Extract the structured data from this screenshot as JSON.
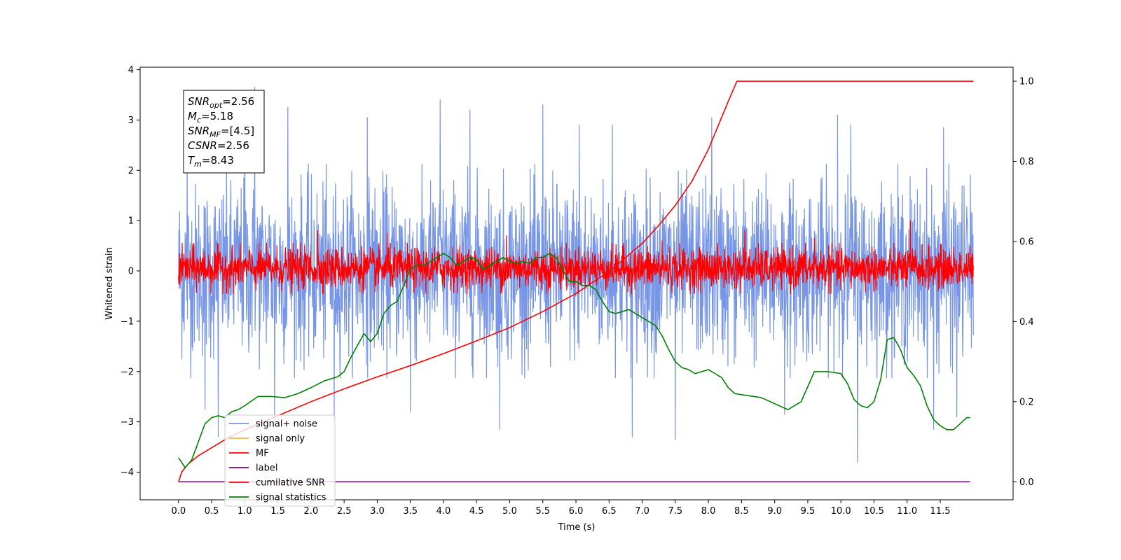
{
  "chart_data": {
    "type": "line",
    "xlabel": "Time (s)",
    "ylabel": "Whitened strain",
    "xlim": [
      -0.58,
      12.6
    ],
    "ylim": [
      -4.55,
      4.05
    ],
    "y2lim": [
      -0.045,
      1.035
    ],
    "xticks": [
      0.0,
      0.5,
      1.0,
      1.5,
      2.0,
      2.5,
      3.0,
      3.5,
      4.0,
      4.5,
      5.0,
      5.5,
      6.0,
      6.5,
      7.0,
      7.5,
      8.0,
      8.5,
      9.0,
      9.5,
      10.0,
      10.5,
      11.0,
      11.5
    ],
    "xtick_labels": [
      "0.0",
      "0.5",
      "1.0",
      "1.5",
      "2.0",
      "2.5",
      "3.0",
      "3.5",
      "4.0",
      "4.5",
      "5.0",
      "5.5",
      "6.0",
      "6.5",
      "7.0",
      "7.5",
      "8.0",
      "8.5",
      "9.0",
      "9.5",
      "10.0",
      "10.5",
      "11.0",
      "11.5"
    ],
    "yticks": [
      -4,
      -3,
      -2,
      -1,
      0,
      1,
      2,
      3,
      4
    ],
    "ytick_labels": [
      "−4",
      "−3",
      "−2",
      "−1",
      "0",
      "1",
      "2",
      "3",
      "4"
    ],
    "y2ticks": [
      0.0,
      0.2,
      0.4,
      0.6,
      0.8,
      1.0
    ],
    "y2tick_labels": [
      "0.0",
      "0.2",
      "0.4",
      "0.6",
      "0.8",
      "1.0"
    ],
    "grid": false,
    "legend_position": "lower-left",
    "annotation": {
      "lines": [
        {
          "base": "SNR",
          "sub": "opt",
          "rest": "=2.56"
        },
        {
          "base": "M",
          "sub": "c",
          "rest": "=5.18"
        },
        {
          "base": "SNR",
          "sub": "MF",
          "rest": "=[4.5]"
        },
        {
          "base": "CSNR",
          "sub": "",
          "rest": "=2.56"
        },
        {
          "base": "T",
          "sub": "m",
          "rest": "=8.43"
        }
      ]
    },
    "series": [
      {
        "name": "signal+ noise",
        "axis": "left",
        "color": "#7896e8",
        "style": "noise",
        "t_range": [
          0.0,
          12.0
        ],
        "typical_range": [
          -1.7,
          1.7
        ],
        "spikes": [
          {
            "x": 0.13,
            "y": 2.7
          },
          {
            "x": 1.0,
            "y": 2.75
          },
          {
            "x": 1.15,
            "y": 3.65
          },
          {
            "x": 1.65,
            "y": 3.25
          },
          {
            "x": 2.85,
            "y": 3.05
          },
          {
            "x": 3.95,
            "y": 3.4
          },
          {
            "x": 4.4,
            "y": 3.2
          },
          {
            "x": 5.5,
            "y": 3.3
          },
          {
            "x": 6.05,
            "y": 2.9
          },
          {
            "x": 6.55,
            "y": 2.9
          },
          {
            "x": 8.05,
            "y": 3.05
          },
          {
            "x": 9.95,
            "y": 3.1
          },
          {
            "x": 10.15,
            "y": 2.9
          },
          {
            "x": 11.55,
            "y": 2.85
          },
          {
            "x": 0.4,
            "y": -2.75
          },
          {
            "x": 0.6,
            "y": -3.3
          },
          {
            "x": 1.45,
            "y": -3.05
          },
          {
            "x": 2.35,
            "y": -2.95
          },
          {
            "x": 3.5,
            "y": -2.8
          },
          {
            "x": 4.85,
            "y": -3.15
          },
          {
            "x": 6.85,
            "y": -3.3
          },
          {
            "x": 7.5,
            "y": -3.35
          },
          {
            "x": 10.25,
            "y": -3.8
          },
          {
            "x": 11.4,
            "y": -3.15
          },
          {
            "x": 11.75,
            "y": -2.9
          },
          {
            "x": 9.15,
            "y": -2.85
          }
        ]
      },
      {
        "name": "signal only",
        "axis": "left",
        "color": "#ffb347",
        "style": "hidden"
      },
      {
        "name": "MF",
        "axis": "left",
        "color": "#ff0000",
        "style": "noise",
        "t_range": [
          0.0,
          12.0
        ],
        "typical_range": [
          -0.35,
          0.45
        ],
        "spikes": [
          {
            "x": 2.1,
            "y": 0.8
          },
          {
            "x": 3.15,
            "y": 0.75
          },
          {
            "x": 4.95,
            "y": 0.7
          },
          {
            "x": 8.55,
            "y": 0.8
          },
          {
            "x": 11.05,
            "y": 1.0
          },
          {
            "x": 9.6,
            "y": 0.65
          },
          {
            "x": 7.3,
            "y": 0.6
          }
        ]
      },
      {
        "name": "cumilative SNR",
        "axis": "right",
        "color": "#ff0000",
        "style": "curve",
        "x": [
          0.0,
          0.05,
          0.15,
          0.3,
          0.5,
          0.75,
          1.0,
          1.5,
          2.0,
          2.5,
          3.0,
          3.5,
          4.0,
          4.5,
          5.0,
          5.5,
          6.0,
          6.5,
          7.0,
          7.25,
          7.5,
          7.75,
          8.0,
          8.1,
          8.2,
          8.3,
          8.43,
          8.5,
          9.0,
          10.0,
          11.0,
          12.0
        ],
        "y": [
          0.0,
          0.025,
          0.045,
          0.065,
          0.085,
          0.11,
          0.13,
          0.165,
          0.2,
          0.232,
          0.262,
          0.29,
          0.32,
          0.352,
          0.385,
          0.425,
          0.47,
          0.525,
          0.595,
          0.64,
          0.69,
          0.75,
          0.83,
          0.87,
          0.91,
          0.95,
          1.0,
          1.0,
          1.0,
          1.0,
          1.0,
          1.0
        ]
      },
      {
        "name": "label",
        "axis": "right",
        "color": "#800080",
        "style": "curve",
        "x": [
          0.0,
          11.95
        ],
        "y": [
          0.0,
          0.0
        ]
      },
      {
        "name": "signal statistics",
        "axis": "right",
        "color": "#008000",
        "style": "curve",
        "x": [
          0.0,
          0.1,
          0.2,
          0.3,
          0.4,
          0.5,
          0.6,
          0.7,
          0.8,
          0.9,
          1.0,
          1.2,
          1.4,
          1.6,
          1.8,
          2.0,
          2.2,
          2.4,
          2.5,
          2.6,
          2.7,
          2.8,
          2.9,
          3.0,
          3.1,
          3.2,
          3.3,
          3.4,
          3.5,
          3.6,
          3.7,
          3.8,
          3.9,
          4.0,
          4.1,
          4.2,
          4.3,
          4.4,
          4.5,
          4.6,
          4.7,
          4.8,
          4.9,
          5.0,
          5.1,
          5.2,
          5.3,
          5.4,
          5.5,
          5.6,
          5.7,
          5.8,
          5.9,
          6.0,
          6.1,
          6.2,
          6.3,
          6.4,
          6.5,
          6.6,
          6.7,
          6.8,
          6.9,
          7.0,
          7.1,
          7.2,
          7.3,
          7.4,
          7.5,
          7.6,
          7.7,
          7.8,
          7.9,
          8.0,
          8.1,
          8.2,
          8.3,
          8.4,
          8.6,
          8.8,
          9.0,
          9.2,
          9.4,
          9.6,
          9.8,
          10.0,
          10.1,
          10.2,
          10.3,
          10.4,
          10.5,
          10.6,
          10.7,
          10.8,
          10.9,
          11.0,
          11.1,
          11.2,
          11.3,
          11.4,
          11.5,
          11.6,
          11.7,
          11.8,
          11.9,
          11.95
        ],
        "y": [
          0.06,
          0.035,
          0.055,
          0.1,
          0.145,
          0.16,
          0.165,
          0.16,
          0.175,
          0.18,
          0.19,
          0.213,
          0.213,
          0.21,
          0.22,
          0.235,
          0.252,
          0.262,
          0.275,
          0.31,
          0.34,
          0.37,
          0.35,
          0.37,
          0.42,
          0.44,
          0.45,
          0.49,
          0.53,
          0.54,
          0.54,
          0.55,
          0.56,
          0.57,
          0.56,
          0.54,
          0.55,
          0.56,
          0.555,
          0.53,
          0.54,
          0.55,
          0.56,
          0.55,
          0.545,
          0.55,
          0.545,
          0.56,
          0.56,
          0.57,
          0.56,
          0.53,
          0.5,
          0.5,
          0.49,
          0.49,
          0.48,
          0.45,
          0.425,
          0.42,
          0.425,
          0.43,
          0.42,
          0.41,
          0.4,
          0.39,
          0.365,
          0.33,
          0.3,
          0.285,
          0.28,
          0.27,
          0.275,
          0.28,
          0.27,
          0.26,
          0.235,
          0.22,
          0.215,
          0.21,
          0.195,
          0.18,
          0.2,
          0.275,
          0.275,
          0.27,
          0.245,
          0.205,
          0.19,
          0.185,
          0.2,
          0.255,
          0.355,
          0.36,
          0.33,
          0.285,
          0.265,
          0.24,
          0.19,
          0.155,
          0.14,
          0.13,
          0.13,
          0.145,
          0.16,
          0.16
        ]
      }
    ]
  }
}
